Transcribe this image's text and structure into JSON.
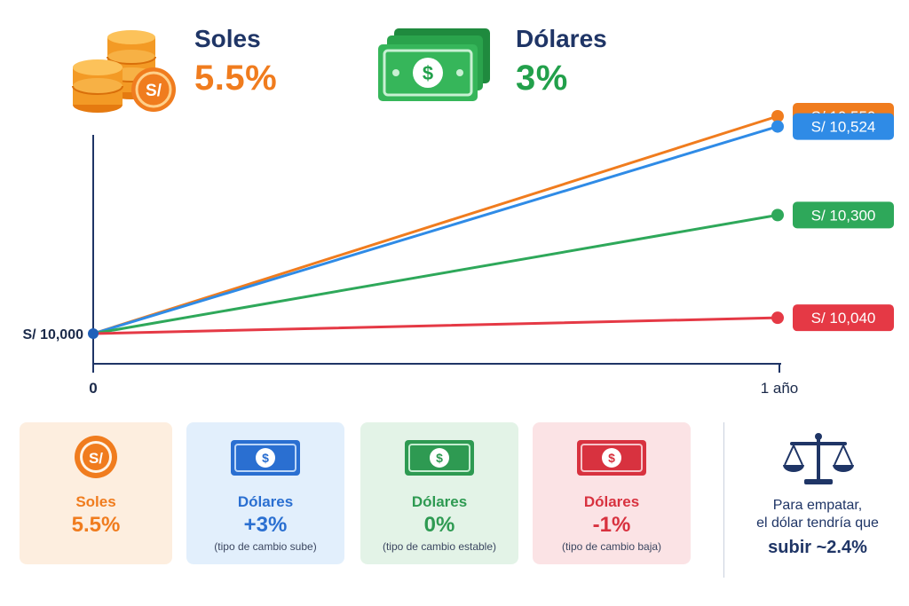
{
  "header": {
    "soles": {
      "label": "Soles",
      "rate": "5.5%"
    },
    "dolares": {
      "label": "Dólares",
      "rate": "3%"
    }
  },
  "chart_data": {
    "type": "line",
    "x": [
      0,
      1
    ],
    "x_tick_labels": [
      "0",
      "1 año"
    ],
    "y_start_label": "S/ 10,000",
    "ylim": [
      10000,
      10600
    ],
    "grid": false,
    "series": [
      {
        "values": [
          10000,
          10550
        ],
        "end_label": "S/ 10,550",
        "color": "#f07c1e"
      },
      {
        "values": [
          10000,
          10524
        ],
        "end_label": "S/ 10,524",
        "color": "#2f8be6"
      },
      {
        "values": [
          10000,
          10300
        ],
        "end_label": "S/ 10,300",
        "color": "#2ea85a"
      },
      {
        "values": [
          10000,
          10040
        ],
        "end_label": "S/ 10,040",
        "color": "#e53945"
      }
    ]
  },
  "cards": [
    {
      "title": "Soles",
      "value": "5.5%",
      "note": "",
      "icon": "sol-coin-icon",
      "color": "#f07c1e",
      "bg": "#fdeedf"
    },
    {
      "title": "Dólares",
      "value": "+3%",
      "note": "(tipo de cambio sube)",
      "icon": "dollar-bill-icon",
      "color": "#2a6fd1",
      "bg": "#e2effc"
    },
    {
      "title": "Dólares",
      "value": "0%",
      "note": "(tipo de cambio estable)",
      "icon": "dollar-bill-icon",
      "color": "#2e9a52",
      "bg": "#e3f3e7"
    },
    {
      "title": "Dólares",
      "value": "-1%",
      "note": "(tipo de cambio baja)",
      "icon": "dollar-bill-icon",
      "color": "#d8323f",
      "bg": "#fbe3e5"
    }
  ],
  "summary": {
    "line1": "Para empatar,",
    "line2": "el dólar tendría que",
    "line3": "subir ~2.4%",
    "icon": "scale-icon"
  },
  "colors": {
    "axis": "#1f3566",
    "soles": "#f07c1e",
    "dolares_header": "#22a04b"
  }
}
